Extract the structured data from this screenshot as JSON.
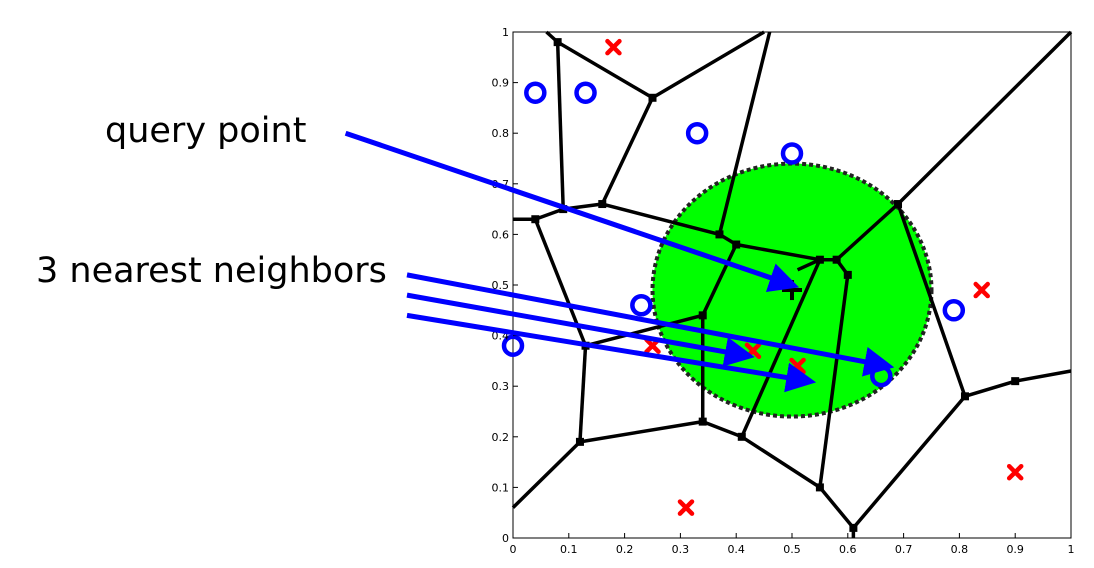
{
  "annotations": {
    "query_label": "query point",
    "neighbors_label": "3 nearest neighbors"
  },
  "chart_data": {
    "type": "scatter",
    "title": "",
    "xlabel": "",
    "ylabel": "",
    "xlim": [
      0,
      1
    ],
    "ylim": [
      0,
      1
    ],
    "grid": false,
    "xticks": [
      "0",
      "0.1",
      "0.2",
      "0.3",
      "0.4",
      "0.5",
      "0.6",
      "0.7",
      "0.8",
      "0.9",
      "1"
    ],
    "yticks": [
      "0",
      "0.1",
      "0.2",
      "0.3",
      "0.4",
      "0.5",
      "0.6",
      "0.7",
      "0.8",
      "0.9",
      "1"
    ],
    "colors": {
      "circle_class": "#0000ff",
      "cross_class": "#ff0000",
      "neighborhood": "#00ff00",
      "edges": "#000000",
      "arrows": "#0000ff"
    },
    "series": [
      {
        "marker": "circle",
        "color": "#0000ff",
        "x": [
          0.04,
          0.13,
          0.33,
          0.5,
          0.23,
          0.79,
          0.0,
          0.66
        ],
        "y": [
          0.88,
          0.88,
          0.8,
          0.76,
          0.46,
          0.45,
          0.38,
          0.32
        ]
      },
      {
        "marker": "cross",
        "color": "#ff0000",
        "x": [
          0.18,
          0.84,
          0.25,
          0.43,
          0.51,
          0.31,
          0.9
        ],
        "y": [
          0.97,
          0.49,
          0.38,
          0.37,
          0.34,
          0.06,
          0.13
        ]
      }
    ],
    "query_point": {
      "x": 0.5,
      "y": 0.49
    },
    "neighborhood_circle": {
      "cx": 0.5,
      "cy": 0.49,
      "r": 0.25
    },
    "voronoi_vertices": [
      [
        0.08,
        0.98
      ],
      [
        0.25,
        0.87
      ],
      [
        0.09,
        0.65
      ],
      [
        0.16,
        0.66
      ],
      [
        0.04,
        0.63
      ],
      [
        0.37,
        0.6
      ],
      [
        0.4,
        0.58
      ],
      [
        0.55,
        0.55
      ],
      [
        0.58,
        0.55
      ],
      [
        0.6,
        0.52
      ],
      [
        0.69,
        0.66
      ],
      [
        0.34,
        0.44
      ],
      [
        0.13,
        0.38
      ],
      [
        0.81,
        0.28
      ],
      [
        0.9,
        0.31
      ],
      [
        0.12,
        0.19
      ],
      [
        0.34,
        0.23
      ],
      [
        0.41,
        0.2
      ],
      [
        0.55,
        0.1
      ],
      [
        0.61,
        0.02
      ]
    ],
    "voronoi_edges": [
      [
        0,
        1
      ],
      [
        0,
        2
      ],
      [
        2,
        3
      ],
      [
        2,
        4
      ],
      [
        3,
        1
      ],
      [
        3,
        5
      ],
      [
        5,
        6
      ],
      [
        6,
        7
      ],
      [
        7,
        8
      ],
      [
        8,
        10
      ],
      [
        8,
        9
      ],
      [
        6,
        11
      ],
      [
        11,
        12
      ],
      [
        4,
        12
      ],
      [
        12,
        15
      ],
      [
        15,
        16
      ],
      [
        16,
        11
      ],
      [
        16,
        17
      ],
      [
        17,
        7
      ],
      [
        17,
        18
      ],
      [
        9,
        18
      ],
      [
        18,
        19
      ],
      [
        10,
        13
      ],
      [
        13,
        14
      ],
      [
        13,
        19
      ]
    ],
    "voronoi_edges_to_boundary": [
      {
        "from": 1,
        "to": [
          0.45,
          1.0
        ]
      },
      {
        "from": 0,
        "to": [
          0.06,
          1.0
        ]
      },
      {
        "from": 5,
        "to": [
          0.46,
          1.0
        ]
      },
      {
        "from": 10,
        "to": [
          1.0,
          1.0
        ]
      },
      {
        "from": 4,
        "to": [
          0.0,
          0.63
        ]
      },
      {
        "from": 15,
        "to": [
          0.0,
          0.06
        ]
      },
      {
        "from": 14,
        "to": [
          1.0,
          0.33
        ]
      },
      {
        "from": 19,
        "to": [
          0.61,
          0.0
        ]
      },
      {
        "from": 7,
        "to": [
          0.51,
          0.53
        ]
      }
    ],
    "arrows": [
      {
        "from_label": "query",
        "tail": [
          -0.3,
          0.8
        ],
        "head": [
          0.5,
          0.5
        ]
      },
      {
        "from_label": "neighbors",
        "tail": [
          -0.19,
          0.52
        ],
        "head": [
          0.67,
          0.34
        ]
      },
      {
        "from_label": "neighbors",
        "tail": [
          -0.19,
          0.48
        ],
        "head": [
          0.42,
          0.36
        ]
      },
      {
        "from_label": "neighbors",
        "tail": [
          -0.19,
          0.44
        ],
        "head": [
          0.53,
          0.31
        ]
      }
    ]
  }
}
